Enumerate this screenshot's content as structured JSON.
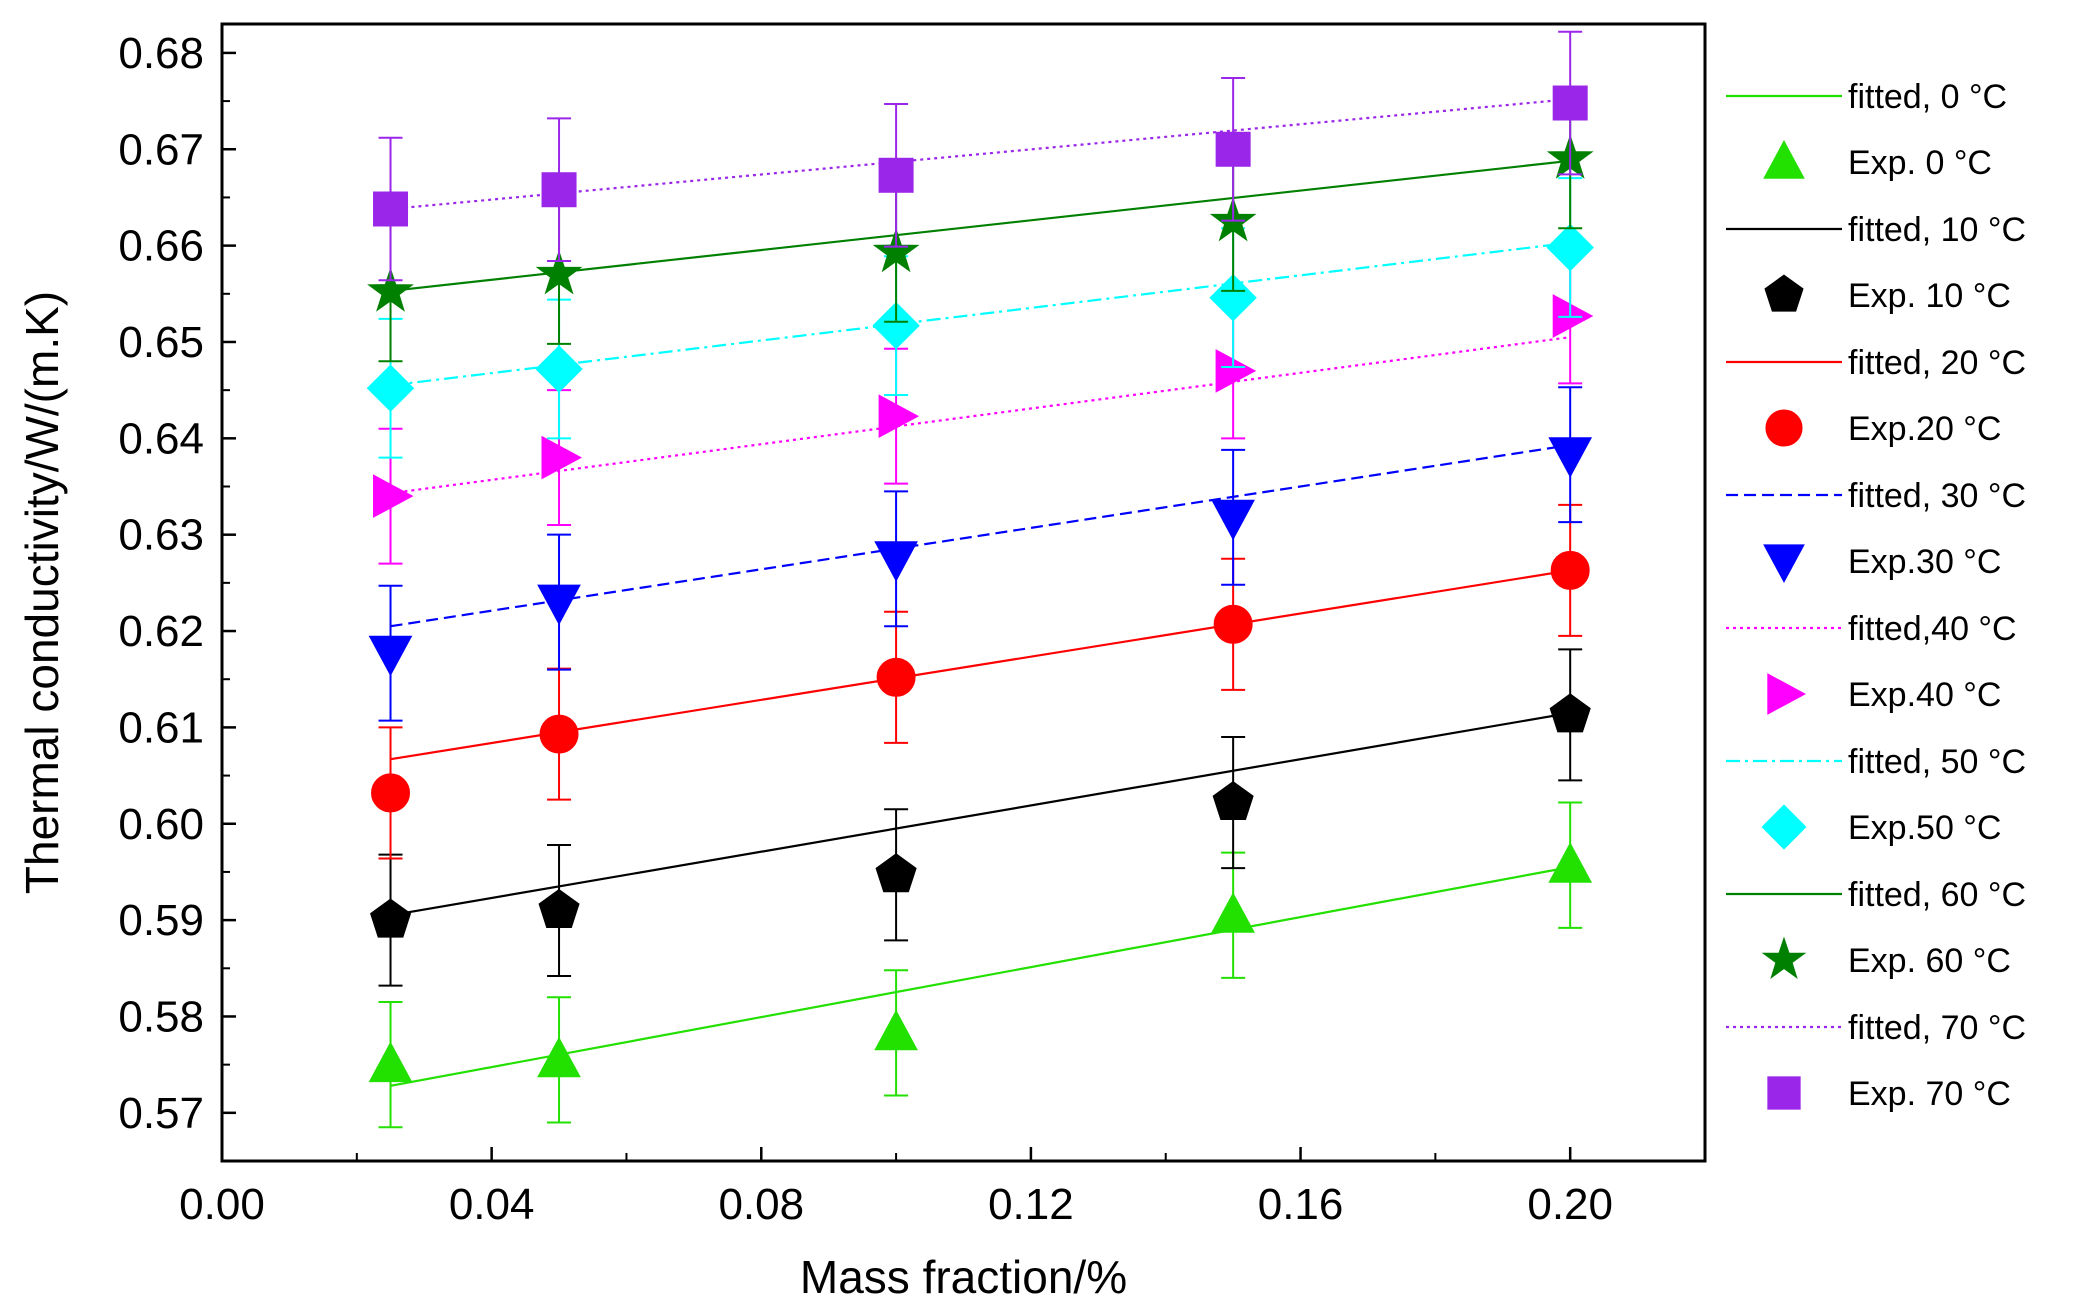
{
  "chart_data": {
    "type": "scatter",
    "xlabel": "Mass fraction/%",
    "ylabel": "Thermal conductivity/W/(m.K)",
    "xlim": [
      0.0,
      0.22
    ],
    "ylim": [
      0.565,
      0.683
    ],
    "x_ticks": [
      "0.00",
      "0.04",
      "0.08",
      "0.12",
      "0.16",
      "0.20"
    ],
    "y_ticks": [
      "0.57",
      "0.58",
      "0.59",
      "0.60",
      "0.61",
      "0.62",
      "0.63",
      "0.64",
      "0.65",
      "0.66",
      "0.67",
      "0.68"
    ],
    "grid": false,
    "legend_position": "right",
    "x": [
      0.025,
      0.05,
      0.1,
      0.15,
      0.2
    ],
    "series": [
      {
        "temp": "0",
        "fitted_label": "fitted, 0 °C",
        "exp_label": "Exp. 0 °C",
        "color": "#22e000",
        "marker": "triangle-up",
        "line": "solid",
        "values": [
          0.575,
          0.5755,
          0.5783,
          0.5905,
          0.5957
        ],
        "error": 0.0065,
        "fit": [
          0.5728,
          0.5955
        ]
      },
      {
        "temp": "10",
        "fitted_label": "fitted, 10 °C",
        "exp_label": "Exp. 10 °C",
        "color": "#000000",
        "marker": "pentagon",
        "line": "solid",
        "values": [
          0.59,
          0.591,
          0.5947,
          0.6022,
          0.6113
        ],
        "error": 0.0068,
        "fit": [
          0.5905,
          0.6115
        ]
      },
      {
        "temp": "20",
        "fitted_label": "fitted, 20 °C",
        "exp_label": "Exp.20 °C",
        "color": "#ff0000",
        "marker": "circle",
        "line": "solid",
        "values": [
          0.6032,
          0.6093,
          0.6152,
          0.6207,
          0.6263
        ],
        "error": 0.0068,
        "fit": [
          0.6067,
          0.6263
        ]
      },
      {
        "temp": "30",
        "fitted_label": "fitted, 30 °C",
        "exp_label": "Exp.30 °C",
        "color": "#0000ff",
        "marker": "triangle-down",
        "line": "dashed",
        "values": [
          0.6177,
          0.623,
          0.6275,
          0.6318,
          0.6383
        ],
        "error": 0.007,
        "fit": [
          0.6205,
          0.6393
        ]
      },
      {
        "temp": "40",
        "fitted_label": " fitted,40 °C",
        "exp_label": "Exp.40 °C",
        "color": "#ff00ff",
        "marker": "triangle-right",
        "line": "dotted",
        "values": [
          0.634,
          0.638,
          0.6423,
          0.647,
          0.6527
        ],
        "error": 0.007,
        "fit": [
          0.6343,
          0.6505
        ]
      },
      {
        "temp": "50",
        "fitted_label": "fitted, 50 °C",
        "exp_label": "Exp.50 °C",
        "color": "#00ffff",
        "marker": "diamond",
        "line": "dashdot",
        "values": [
          0.6452,
          0.6472,
          0.6517,
          0.6546,
          0.6598
        ],
        "error": 0.0072,
        "fit": [
          0.6455,
          0.6603
        ]
      },
      {
        "temp": "60",
        "fitted_label": "fitted, 60 °C",
        "exp_label": "Exp. 60 °C",
        "color": "#008000",
        "marker": "star",
        "line": "solid",
        "values": [
          0.6552,
          0.657,
          0.6593,
          0.6625,
          0.669
        ],
        "error": 0.0072,
        "fit": [
          0.6553,
          0.6688
        ]
      },
      {
        "temp": "70",
        "fitted_label": "fitted, 70 °C",
        "exp_label": "Exp. 70 °C",
        "color": "#9a26ea",
        "marker": "square",
        "line": "dotted",
        "values": [
          0.6638,
          0.6658,
          0.6673,
          0.67,
          0.6748
        ],
        "error": 0.0074,
        "fit": [
          0.6638,
          0.6752
        ]
      }
    ]
  }
}
